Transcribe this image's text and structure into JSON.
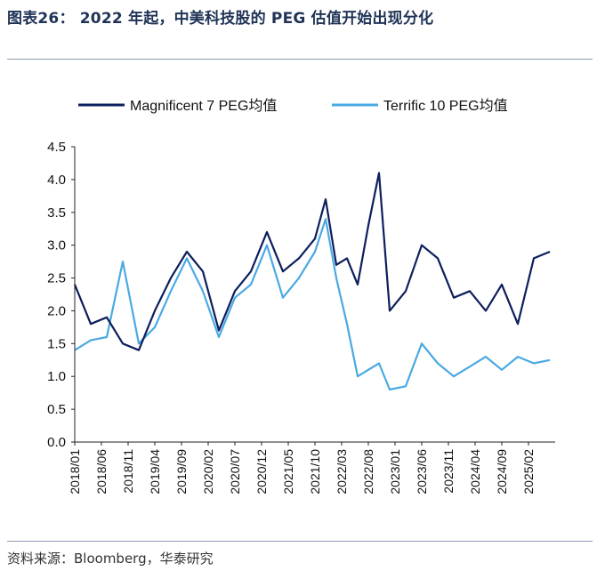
{
  "figure": {
    "title": "图表26：  2022 年起，中美科技股的 PEG 估值开始出现分化",
    "source": "资料来源：Bloomberg，华泰研究"
  },
  "colors": {
    "title": "#1f3356",
    "mag7": "#0d1f5c",
    "terrific10": "#4aa9e3",
    "axis": "#222222",
    "rule": "#8c9bb0"
  },
  "chart_data": {
    "type": "line",
    "title": "",
    "xlabel": "",
    "ylabel": "",
    "ylim": [
      0,
      4.5
    ],
    "yticks": [
      "0.0",
      "0.5",
      "1.0",
      "1.5",
      "2.0",
      "2.5",
      "3.0",
      "3.5",
      "4.0",
      "4.5"
    ],
    "xticks": [
      "2018/01",
      "2018/06",
      "2018/11",
      "2019/04",
      "2019/09",
      "2020/02",
      "2020/07",
      "2020/12",
      "2021/05",
      "2021/10",
      "2022/03",
      "2022/08",
      "2023/01",
      "2023/06",
      "2023/11",
      "2024/04",
      "2024/09",
      "2025/02"
    ],
    "legend_position": "top",
    "grid": false,
    "x": [
      "2018/01",
      "2018/04",
      "2018/07",
      "2018/10",
      "2019/01",
      "2019/04",
      "2019/07",
      "2019/10",
      "2020/01",
      "2020/04",
      "2020/07",
      "2020/10",
      "2021/01",
      "2021/04",
      "2021/07",
      "2021/10",
      "2021/12",
      "2022/02",
      "2022/04",
      "2022/06",
      "2022/08",
      "2022/10",
      "2022/12",
      "2023/03",
      "2023/06",
      "2023/09",
      "2023/12",
      "2024/03",
      "2024/06",
      "2024/09",
      "2024/12",
      "2025/03",
      "2025/06"
    ],
    "series": [
      {
        "name": "Magnificent 7 PEG均值",
        "values": [
          2.4,
          1.8,
          1.9,
          1.5,
          1.4,
          2.0,
          2.5,
          2.9,
          2.6,
          1.7,
          2.3,
          2.6,
          3.2,
          2.6,
          2.8,
          3.1,
          3.7,
          2.7,
          2.8,
          2.4,
          3.3,
          4.1,
          2.0,
          2.3,
          3.0,
          2.8,
          2.2,
          2.3,
          2.0,
          2.4,
          1.8,
          2.8,
          2.9
        ]
      },
      {
        "name": "Terrific 10 PEG均值",
        "values": [
          1.4,
          1.55,
          1.6,
          2.75,
          1.5,
          1.75,
          2.3,
          2.8,
          2.3,
          1.6,
          2.2,
          2.4,
          3.0,
          2.2,
          2.5,
          2.9,
          3.4,
          2.5,
          1.8,
          1.0,
          1.1,
          1.2,
          0.8,
          0.85,
          1.5,
          1.2,
          1.0,
          1.15,
          1.3,
          1.1,
          1.3,
          1.2,
          1.25
        ]
      }
    ]
  }
}
